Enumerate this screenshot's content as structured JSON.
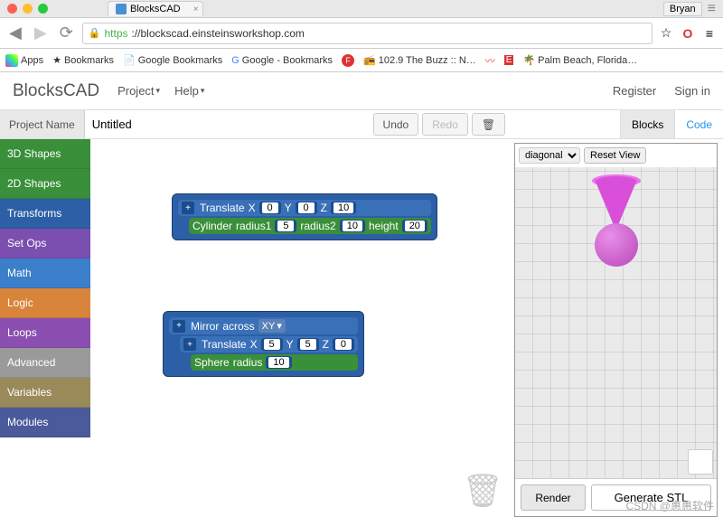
{
  "chrome": {
    "user": "Bryan",
    "tab_title": "BlocksCAD",
    "url_protocol": "https",
    "url_host": "://blockscad.einsteinsworkshop.com"
  },
  "bookmarks": {
    "apps": "Apps",
    "items": [
      "Bookmarks",
      "Google Bookmarks",
      "Google - Bookmarks",
      "",
      "102.9 The Buzz :: N…",
      "",
      "",
      "Palm Beach, Florida…"
    ]
  },
  "header": {
    "brand": "BlocksCAD",
    "menu": [
      "Project",
      "Help"
    ],
    "right": [
      "Register",
      "Sign in"
    ]
  },
  "toolbar": {
    "project_label": "Project Name",
    "project_value": "Untitled",
    "undo": "Undo",
    "redo": "Redo",
    "blocks_tab": "Blocks",
    "code_tab": "Code"
  },
  "categories": [
    {
      "label": "3D Shapes",
      "color": "#3a8f3a"
    },
    {
      "label": "2D Shapes",
      "color": "#3a8f3a"
    },
    {
      "label": "Transforms",
      "color": "#2c5fa5"
    },
    {
      "label": "Set Ops",
      "color": "#7b4fb0"
    },
    {
      "label": "Math",
      "color": "#3b7ec9"
    },
    {
      "label": "Logic",
      "color": "#d9843b"
    },
    {
      "label": "Loops",
      "color": "#8a4fb0"
    },
    {
      "label": "Advanced",
      "color": "#9a9a9a"
    },
    {
      "label": "Variables",
      "color": "#9a8a5a"
    },
    {
      "label": "Modules",
      "color": "#4a5a9a"
    }
  ],
  "blocks": {
    "b1": {
      "translate": {
        "label": "Translate",
        "x_label": "X",
        "y_label": "Y",
        "z_label": "Z",
        "x": "0",
        "y": "0",
        "z": "10"
      },
      "cylinder": {
        "label": "Cylinder",
        "r1_label": "radius1",
        "r1": "5",
        "r2_label": "radius2",
        "r2": "10",
        "h_label": "height",
        "h": "20"
      }
    },
    "b2": {
      "mirror": {
        "label": "Mirror",
        "across_label": "across",
        "plane": "XY"
      },
      "translate": {
        "label": "Translate",
        "x_label": "X",
        "y_label": "Y",
        "z_label": "Z",
        "x": "5",
        "y": "5",
        "z": "0"
      },
      "sphere": {
        "label": "Sphere",
        "r_label": "radius",
        "r": "10"
      }
    }
  },
  "preview": {
    "view_mode": "diagonal",
    "reset": "Reset View",
    "render": "Render",
    "stl": "Generate STL",
    "shape_color": "#d94fd9"
  },
  "watermark": "CSDN @惠惠软件"
}
